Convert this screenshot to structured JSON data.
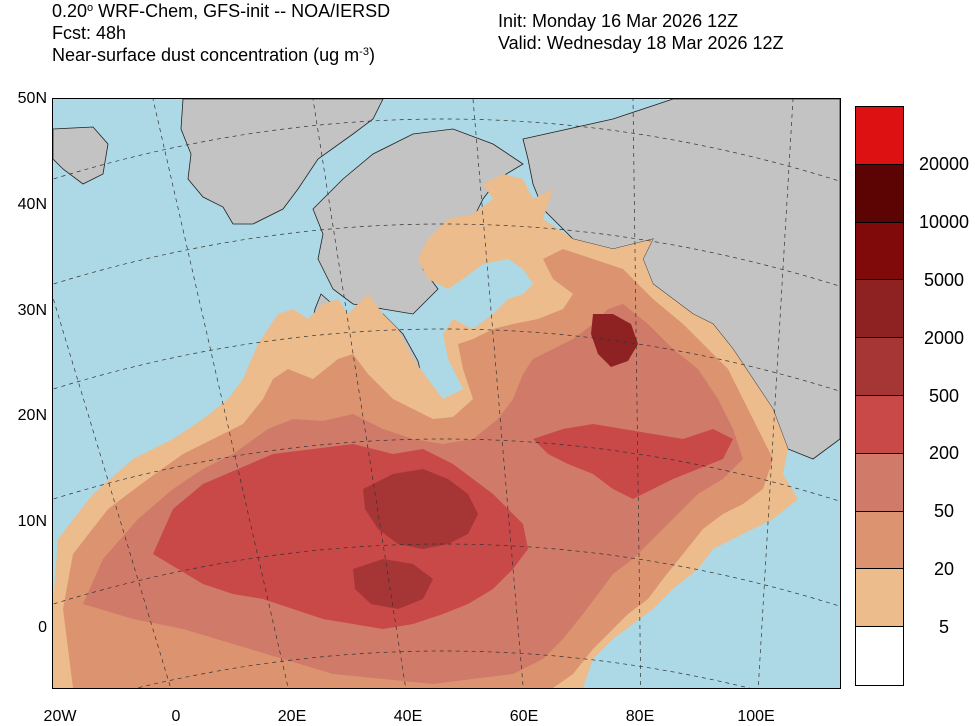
{
  "header": {
    "model_prefix": "0.20",
    "model_degree": "o",
    "model_suffix": " WRF-Chem, GFS-init -- NOA/IERSD",
    "forecast": "Fcst: 48h",
    "field_prefix": "Near-surface dust concentration (ug m",
    "field_exp": "-3",
    "field_suffix": ")",
    "init": "Init: Monday 16 Mar 2026  12Z",
    "valid": "Valid: Wednesday 18 Mar 2026  12Z"
  },
  "axes": {
    "lat_labels": [
      "50N",
      "40N",
      "30N",
      "20N",
      "10N",
      "0"
    ],
    "lon_labels": [
      "20W",
      "0",
      "20E",
      "40E",
      "60E",
      "80E",
      "100E"
    ]
  },
  "colorbar": {
    "labels": [
      "20000",
      "10000",
      "5000",
      "2000",
      "500",
      "200",
      "50",
      "20",
      "5"
    ],
    "colors": [
      "#dd1111",
      "#5c0404",
      "#800a0a",
      "#8e2222",
      "#a63636",
      "#c94848",
      "#d07a6a",
      "#dc9470",
      "#ecbc8c",
      "#ffffff"
    ]
  },
  "colors": {
    "ocean": "#add8e6",
    "land_nodata": "#c3c3c3"
  },
  "map": {
    "projection": "lambert-conformal",
    "field": "near-surface dust concentration"
  }
}
